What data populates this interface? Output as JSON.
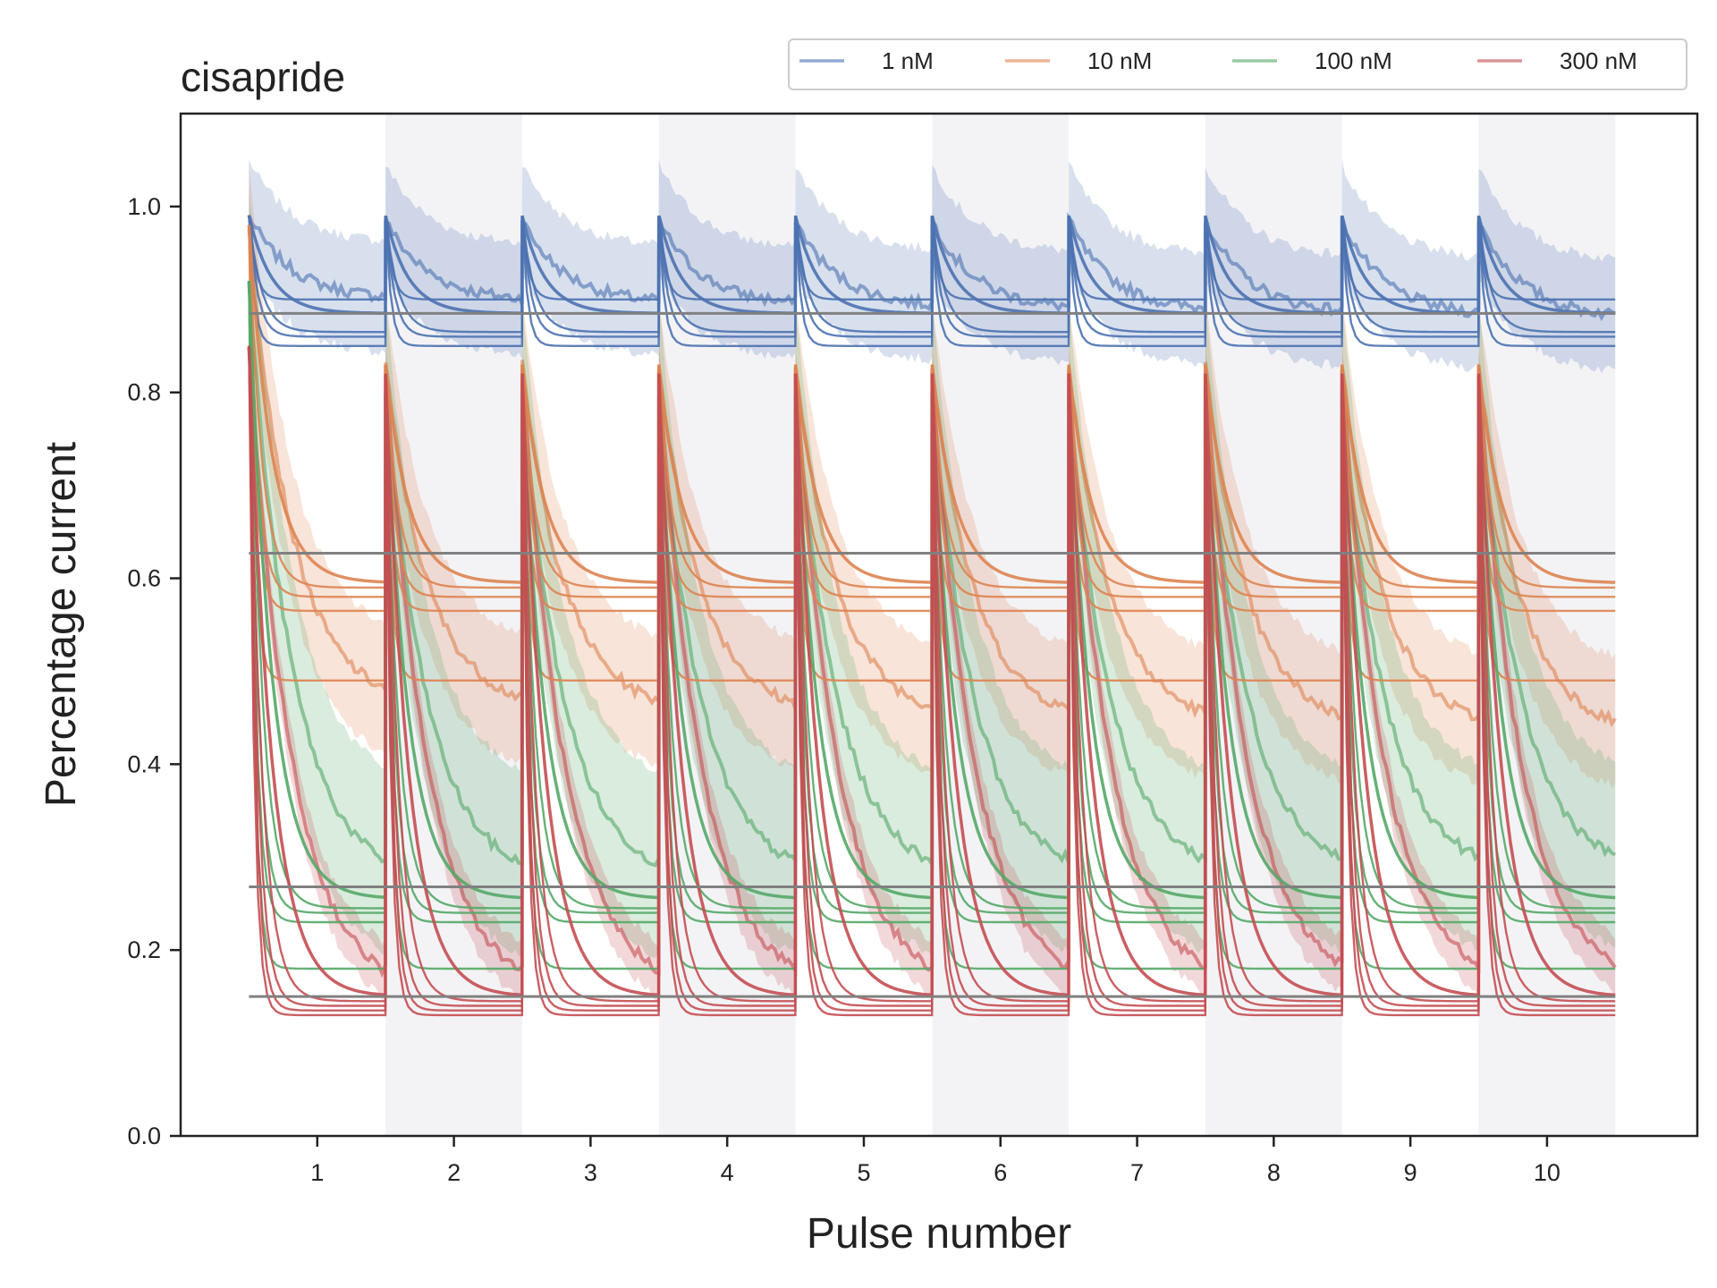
{
  "chart_data": {
    "type": "line",
    "title": "cisapride",
    "xlabel": "Pulse number",
    "ylabel": "Percentage current",
    "xlim": [
      0,
      11.1
    ],
    "ylim": [
      0.0,
      1.1
    ],
    "xticks": [
      1,
      2,
      3,
      4,
      5,
      6,
      7,
      8,
      9,
      10
    ],
    "xtick_labels": [
      "1",
      "2",
      "3",
      "4",
      "5",
      "6",
      "7",
      "8",
      "9",
      "10"
    ],
    "yticks": [
      0.0,
      0.2,
      0.4,
      0.6,
      0.8,
      1.0
    ],
    "ytick_labels": [
      "0.0",
      "0.2",
      "0.4",
      "0.6",
      "0.8",
      "1.0"
    ],
    "grid": false,
    "legend_position": "top-right, above axes",
    "legend_columns": 4,
    "pulses": 10,
    "pulse_start": 0.5,
    "pulse_width": 1.0,
    "shaded_pulses": [
      2,
      4,
      6,
      8,
      10
    ],
    "shade_color": "#f3f3f6",
    "reference_lines": {
      "color": "#808080",
      "levels": [
        0.885,
        0.627,
        0.268,
        0.15
      ]
    },
    "series": [
      {
        "name": "1 nM",
        "color": "#4c72b0",
        "measured_start": 0.99,
        "measured_end_first": 0.9,
        "measured_end_last": 0.88,
        "measured_band": 0.06,
        "measured_recovery": 0.985,
        "fit_steady": [
          0.885,
          0.865,
          0.86,
          0.9,
          0.85
        ]
      },
      {
        "name": "10 nM",
        "color": "#dd8452",
        "measured_start": 0.98,
        "measured_end_first": 0.46,
        "measured_end_last": 0.43,
        "measured_band": 0.07,
        "measured_recovery": 0.83,
        "fit_steady": [
          0.595,
          0.59,
          0.58,
          0.565,
          0.49
        ]
      },
      {
        "name": "100 nM",
        "color": "#55a868",
        "measured_start": 0.92,
        "measured_end_first": 0.27,
        "measured_end_last": 0.28,
        "measured_band": 0.1,
        "measured_recovery": 0.8,
        "fit_steady": [
          0.255,
          0.245,
          0.24,
          0.23,
          0.18
        ]
      },
      {
        "name": "300 nM",
        "color": "#c44e52",
        "measured_start": 0.85,
        "measured_end_first": 0.15,
        "measured_end_last": 0.16,
        "measured_band": 0.03,
        "measured_recovery": 0.82,
        "fit_steady": [
          0.15,
          0.145,
          0.14,
          0.135,
          0.13
        ]
      }
    ]
  }
}
